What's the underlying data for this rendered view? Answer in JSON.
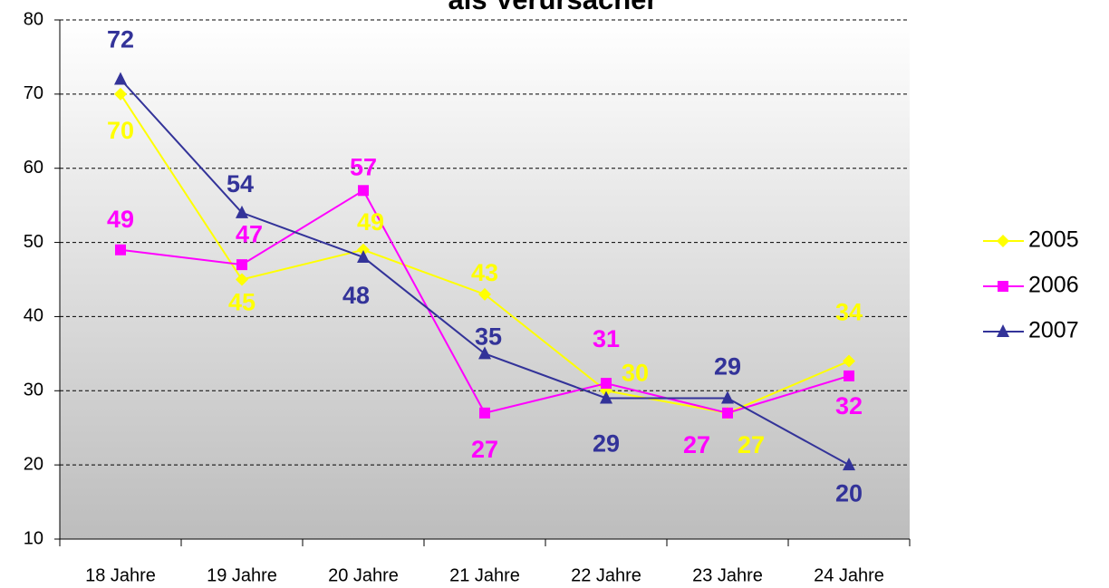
{
  "chart_data": {
    "type": "line",
    "title": "als Verursacher",
    "categories": [
      "18 Jahre",
      "19 Jahre",
      "20 Jahre",
      "21 Jahre",
      "22 Jahre",
      "23 Jahre",
      "24 Jahre"
    ],
    "series": [
      {
        "name": "2005",
        "color": "#ffff00",
        "values": [
          70,
          45,
          49,
          43,
          30,
          27,
          34
        ]
      },
      {
        "name": "2006",
        "color": "#ff00ff",
        "values": [
          49,
          47,
          57,
          27,
          31,
          27,
          32
        ]
      },
      {
        "name": "2007",
        "color": "#333399",
        "values": [
          72,
          54,
          48,
          35,
          29,
          29,
          20
        ]
      }
    ],
    "ylim": [
      10,
      80
    ],
    "yticks": [
      10,
      20,
      30,
      40,
      50,
      60,
      70,
      80
    ],
    "grid": true,
    "legend": "right"
  }
}
